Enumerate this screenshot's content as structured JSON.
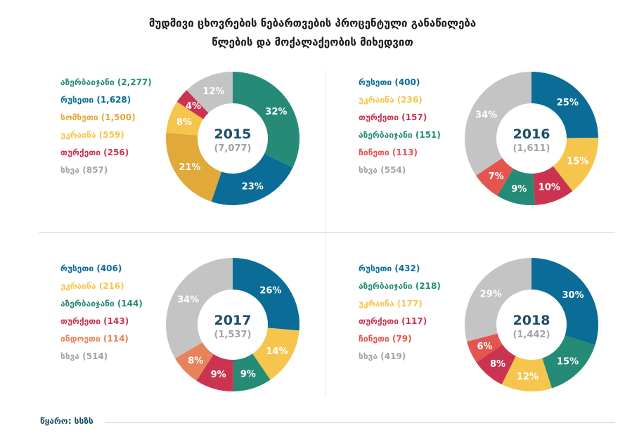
{
  "title": {
    "line1": "მუდმივი ცხოვრების ნებართვების პროცენტული განაწილება",
    "line2": "წლების და მოქალაქეობის მიხედვით"
  },
  "source": "წყარო: სსზს",
  "colors": {
    "teal": "#258b76",
    "blue": "#0b6d97",
    "gold": "#e0a93a",
    "yellow": "#f5c54e",
    "red": "#cb3450",
    "salmon": "#e5554f",
    "orange": "#e8825a",
    "gray": "#c4c4c4"
  },
  "chart_data": [
    {
      "type": "pie",
      "year": "2015",
      "total": "(7,077)",
      "legend": [
        {
          "label": "აზერბაიჯანი (2,277)",
          "color": "#258b76"
        },
        {
          "label": "რუსეთი (1,628)",
          "color": "#0b6d97"
        },
        {
          "label": "სომხეთი (1,500)",
          "color": "#e0a93a"
        },
        {
          "label": "უკრაინა (559)",
          "color": "#f5c54e"
        },
        {
          "label": "თურქეთი (256)",
          "color": "#cb3450"
        },
        {
          "label": "სხვა (857)",
          "color": "#a3a3a3"
        }
      ],
      "slices": [
        {
          "value": 2277,
          "label": "32%",
          "color": "#258b76"
        },
        {
          "value": 1628,
          "label": "23%",
          "color": "#0b6d97"
        },
        {
          "value": 1500,
          "label": "21%",
          "color": "#e0a93a"
        },
        {
          "value": 559,
          "label": "8%",
          "color": "#f5c54e"
        },
        {
          "value": 256,
          "label": "4%",
          "color": "#cb3450"
        },
        {
          "value": 857,
          "label": "12%",
          "color": "#c4c4c4"
        }
      ]
    },
    {
      "type": "pie",
      "year": "2016",
      "total": "(1,611)",
      "legend": [
        {
          "label": "რუსეთი (400)",
          "color": "#0b6d97"
        },
        {
          "label": "უკრაინა (236)",
          "color": "#f5c54e"
        },
        {
          "label": "თურქეთი (157)",
          "color": "#cb3450"
        },
        {
          "label": "აზერბაიჯანი (151)",
          "color": "#258b76"
        },
        {
          "label": "ჩინეთი (113)",
          "color": "#e5554f"
        },
        {
          "label": "სხვა (554)",
          "color": "#a3a3a3"
        }
      ],
      "slices": [
        {
          "value": 400,
          "label": "25%",
          "color": "#0b6d97"
        },
        {
          "value": 236,
          "label": "15%",
          "color": "#f5c54e"
        },
        {
          "value": 157,
          "label": "10%",
          "color": "#cb3450"
        },
        {
          "value": 151,
          "label": "9%",
          "color": "#258b76"
        },
        {
          "value": 113,
          "label": "7%",
          "color": "#e5554f"
        },
        {
          "value": 554,
          "label": "34%",
          "color": "#c4c4c4"
        }
      ]
    },
    {
      "type": "pie",
      "year": "2017",
      "total": "(1,537)",
      "legend": [
        {
          "label": "რუსეთი (406)",
          "color": "#0b6d97"
        },
        {
          "label": "უკრაინა (216)",
          "color": "#f5c54e"
        },
        {
          "label": "აზერბაიჯანი (144)",
          "color": "#258b76"
        },
        {
          "label": "თურქეთი (143)",
          "color": "#cb3450"
        },
        {
          "label": "ინდოეთი (114)",
          "color": "#e8825a"
        },
        {
          "label": "სხვა (514)",
          "color": "#a3a3a3"
        }
      ],
      "slices": [
        {
          "value": 406,
          "label": "26%",
          "color": "#0b6d97"
        },
        {
          "value": 216,
          "label": "14%",
          "color": "#f5c54e"
        },
        {
          "value": 144,
          "label": "9%",
          "color": "#258b76"
        },
        {
          "value": 143,
          "label": "9%",
          "color": "#cb3450"
        },
        {
          "value": 114,
          "label": "8%",
          "color": "#e8825a"
        },
        {
          "value": 514,
          "label": "34%",
          "color": "#c4c4c4"
        }
      ]
    },
    {
      "type": "pie",
      "year": "2018",
      "total": "(1,442)",
      "legend": [
        {
          "label": "რუსეთი (432)",
          "color": "#0b6d97"
        },
        {
          "label": "აზერბაიჯანი (218)",
          "color": "#258b76"
        },
        {
          "label": "უკრაინა (177)",
          "color": "#f5c54e"
        },
        {
          "label": "თურქეთი (117)",
          "color": "#cb3450"
        },
        {
          "label": "ჩინეთი (79)",
          "color": "#e5554f"
        },
        {
          "label": "სხვა (419)",
          "color": "#a3a3a3"
        }
      ],
      "slices": [
        {
          "value": 432,
          "label": "30%",
          "color": "#0b6d97"
        },
        {
          "value": 218,
          "label": "15%",
          "color": "#258b76"
        },
        {
          "value": 177,
          "label": "12%",
          "color": "#f5c54e"
        },
        {
          "value": 117,
          "label": "8%",
          "color": "#cb3450"
        },
        {
          "value": 79,
          "label": "6%",
          "color": "#e5554f"
        },
        {
          "value": 419,
          "label": "29%",
          "color": "#c4c4c4"
        }
      ]
    }
  ]
}
